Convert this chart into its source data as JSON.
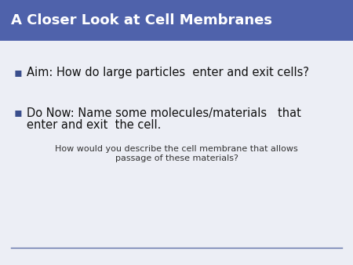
{
  "title": "A Closer Look at Cell Membranes",
  "title_bg_color": "#4F62AB",
  "title_text_color": "#FFFFFF",
  "slide_bg_color": "#ECEEF5",
  "bullet1": "Aim: How do large particles  enter and exit cells?",
  "bullet2_line1": "Do Now: Name some molecules/materials   that",
  "bullet2_line2": "enter and exit  the cell.",
  "sub_bullet_line1": "How would you describe the cell membrane that allows",
  "sub_bullet_line2": "passage of these materials?",
  "bullet_color": "#3A4E8C",
  "body_text_color": "#111111",
  "sub_bullet_color": "#333333",
  "line_color": "#6070A8",
  "title_fontsize": 13,
  "bullet_fontsize": 10.5,
  "sub_fontsize": 8.0
}
